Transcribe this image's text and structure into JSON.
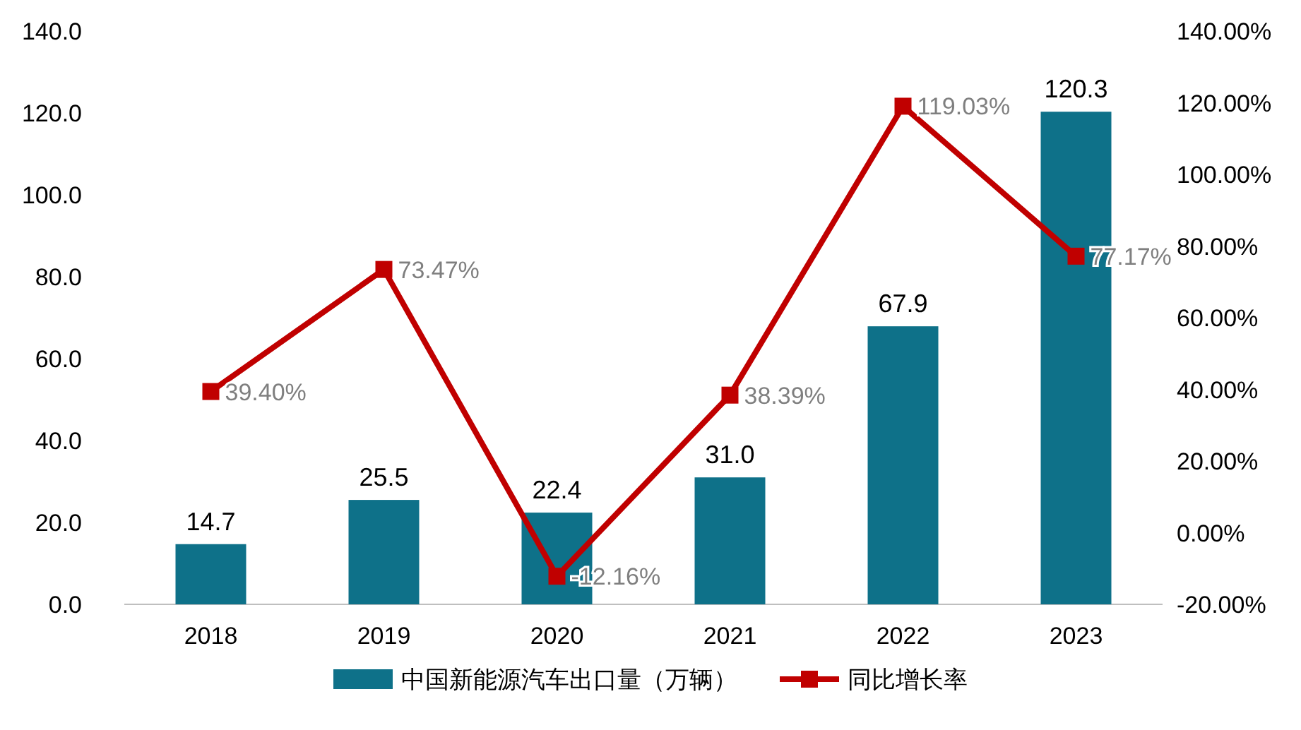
{
  "chart_data": {
    "type": "bar",
    "categories": [
      "2018",
      "2019",
      "2020",
      "2021",
      "2022",
      "2023"
    ],
    "series": [
      {
        "name": "中国新能源汽车出口量（万辆）",
        "color": "#0e7189",
        "values": [
          14.7,
          25.5,
          22.4,
          31.0,
          67.9,
          120.3
        ],
        "value_labels": [
          "14.7",
          "25.5",
          "22.4",
          "31.0",
          "67.9",
          "120.3"
        ]
      },
      {
        "name": "同比增长率",
        "type": "line",
        "axis": "y2",
        "color": "#c00000",
        "marker": "square",
        "values": [
          39.4,
          73.47,
          -12.16,
          38.39,
          119.03,
          77.17
        ],
        "value_labels": [
          "39.40%",
          "73.47%",
          "-12.16%",
          "38.39%",
          "119.03%",
          "77.17%"
        ]
      }
    ],
    "ylim": [
      0,
      140
    ],
    "yticks": [
      {
        "value": 0,
        "label": "0.0"
      },
      {
        "value": 20,
        "label": "20.0"
      },
      {
        "value": 40,
        "label": "40.0"
      },
      {
        "value": 60,
        "label": "60.0"
      },
      {
        "value": 80,
        "label": "80.0"
      },
      {
        "value": 100,
        "label": "100.0"
      },
      {
        "value": 120,
        "label": "120.0"
      },
      {
        "value": 140,
        "label": "140.0"
      }
    ],
    "y2lim": [
      -20,
      140
    ],
    "y2ticks": [
      {
        "value": -20,
        "label": "-20.00%"
      },
      {
        "value": 0,
        "label": "0.00%"
      },
      {
        "value": 20,
        "label": "20.00%"
      },
      {
        "value": 40,
        "label": "40.00%"
      },
      {
        "value": 60,
        "label": "60.00%"
      },
      {
        "value": 80,
        "label": "80.00%"
      },
      {
        "value": 100,
        "label": "100.00%"
      },
      {
        "value": 120,
        "label": "120.00%"
      },
      {
        "value": 140,
        "label": "140.00%"
      }
    ],
    "legend": "bottom",
    "grid": false
  }
}
